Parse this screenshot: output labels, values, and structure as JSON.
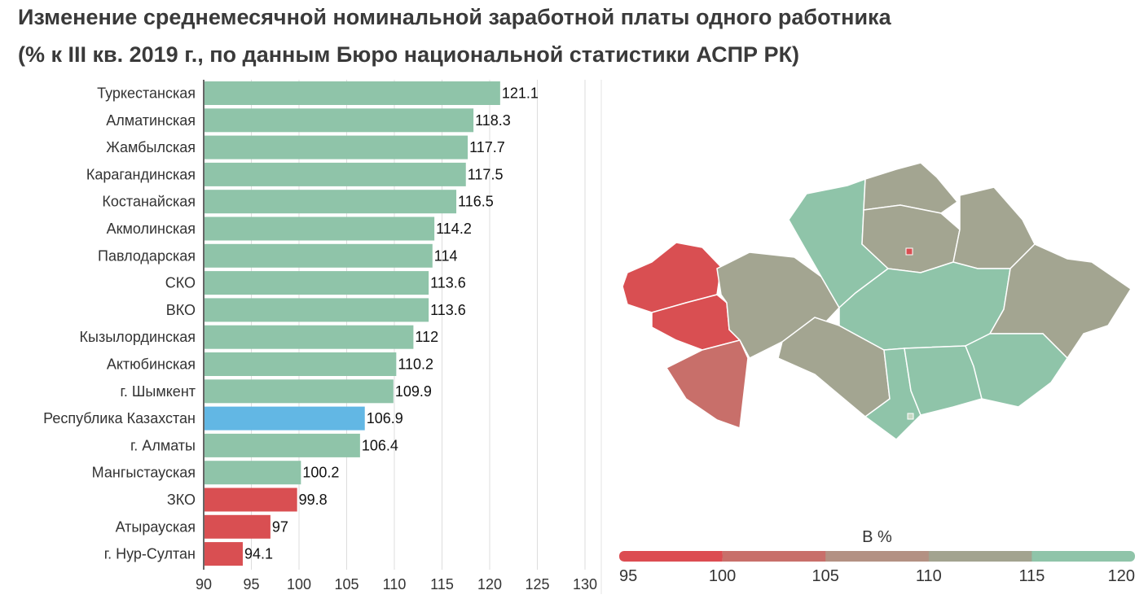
{
  "title_line1": "Изменение среднемесячной номинальной заработной платы одного работника",
  "title_line2": "(% к III кв. 2019 г., по данным Бюро национальной статистики АСПР РК)",
  "chart_data": {
    "type": "bar",
    "orientation": "horizontal",
    "categories": [
      "Туркестанская",
      "Алматинская",
      "Жамбылская",
      "Карагандинская",
      "Костанайская",
      "Акмолинская",
      "Павлодарская",
      "СКО",
      "ВКО",
      "Кызылординская",
      "Актюбинская",
      "г. Шымкент",
      "Республика Казахстан",
      "г. Алматы",
      "Мангыстауская",
      "ЗКО",
      "Атырауская",
      "г. Нур-Султан"
    ],
    "values": [
      121.1,
      118.3,
      117.7,
      117.5,
      116.5,
      114.2,
      114,
      113.6,
      113.6,
      112,
      110.2,
      109.9,
      106.9,
      106.4,
      100.2,
      99.8,
      97,
      94.1
    ],
    "value_labels": [
      "121.1",
      "118.3",
      "117.7",
      "117.5",
      "116.5",
      "114.2",
      "114",
      "113.6",
      "113.6",
      "112",
      "110.2",
      "109.9",
      "106.9",
      "106.4",
      "100.2",
      "99.8",
      "97",
      "94.1"
    ],
    "xlim": [
      90,
      130
    ],
    "xticks": [
      "90",
      "95",
      "100",
      "105",
      "110",
      "115",
      "120",
      "125",
      "130"
    ],
    "grid": true,
    "colors": {
      "above_100": "#8fc4a9",
      "below_100": "#d94f52",
      "highlight": "#62b7e4"
    },
    "highlight_category": "Республика Казахстан"
  },
  "legend": {
    "title": "В %",
    "ticks": [
      "95",
      "100",
      "105",
      "110",
      "115",
      "120"
    ],
    "colors": [
      "#dc4c51",
      "#c86f6a",
      "#b39183",
      "#a2a38f",
      "#8fc4a9"
    ]
  },
  "map_colors": {
    "teal": "#8fc4a9",
    "gray": "#a3a591",
    "red": "#d94f52",
    "muted_red": "#c86f6a"
  }
}
